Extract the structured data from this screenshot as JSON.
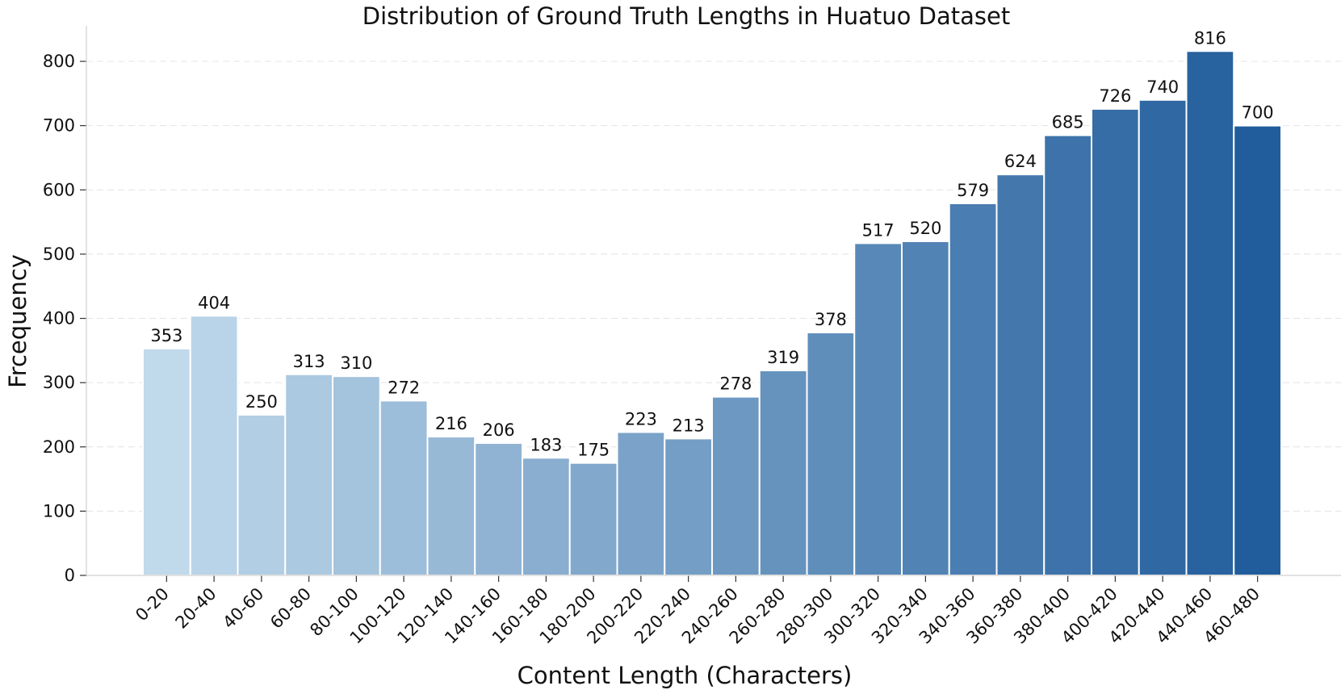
{
  "chart_data": {
    "type": "bar",
    "title": "Distribution of Ground Truth Lengths in Huatuo Dataset",
    "xlabel": "Content Length (Characters)",
    "ylabel": "Frcequency",
    "categories": [
      "0-20",
      "20-40",
      "40-60",
      "60-80",
      "80-100",
      "100-120",
      "120-140",
      "140-160",
      "160-180",
      "180-200",
      "200-220",
      "220-240",
      "240-260",
      "260-280",
      "280-300",
      "300-320",
      "320-340",
      "340-360",
      "360-380",
      "380-400",
      "400-420",
      "420-440",
      "440-460",
      "460-480"
    ],
    "values": [
      353,
      404,
      250,
      313,
      310,
      272,
      216,
      206,
      183,
      175,
      223,
      213,
      278,
      319,
      378,
      517,
      520,
      579,
      624,
      685,
      726,
      740,
      816,
      700
    ],
    "ylim": [
      0,
      860
    ],
    "yticks": [
      0,
      100,
      200,
      300,
      400,
      500,
      600,
      700,
      800
    ],
    "grid": true,
    "color_start": "#c0d9eb",
    "color_end": "#215d9c"
  }
}
